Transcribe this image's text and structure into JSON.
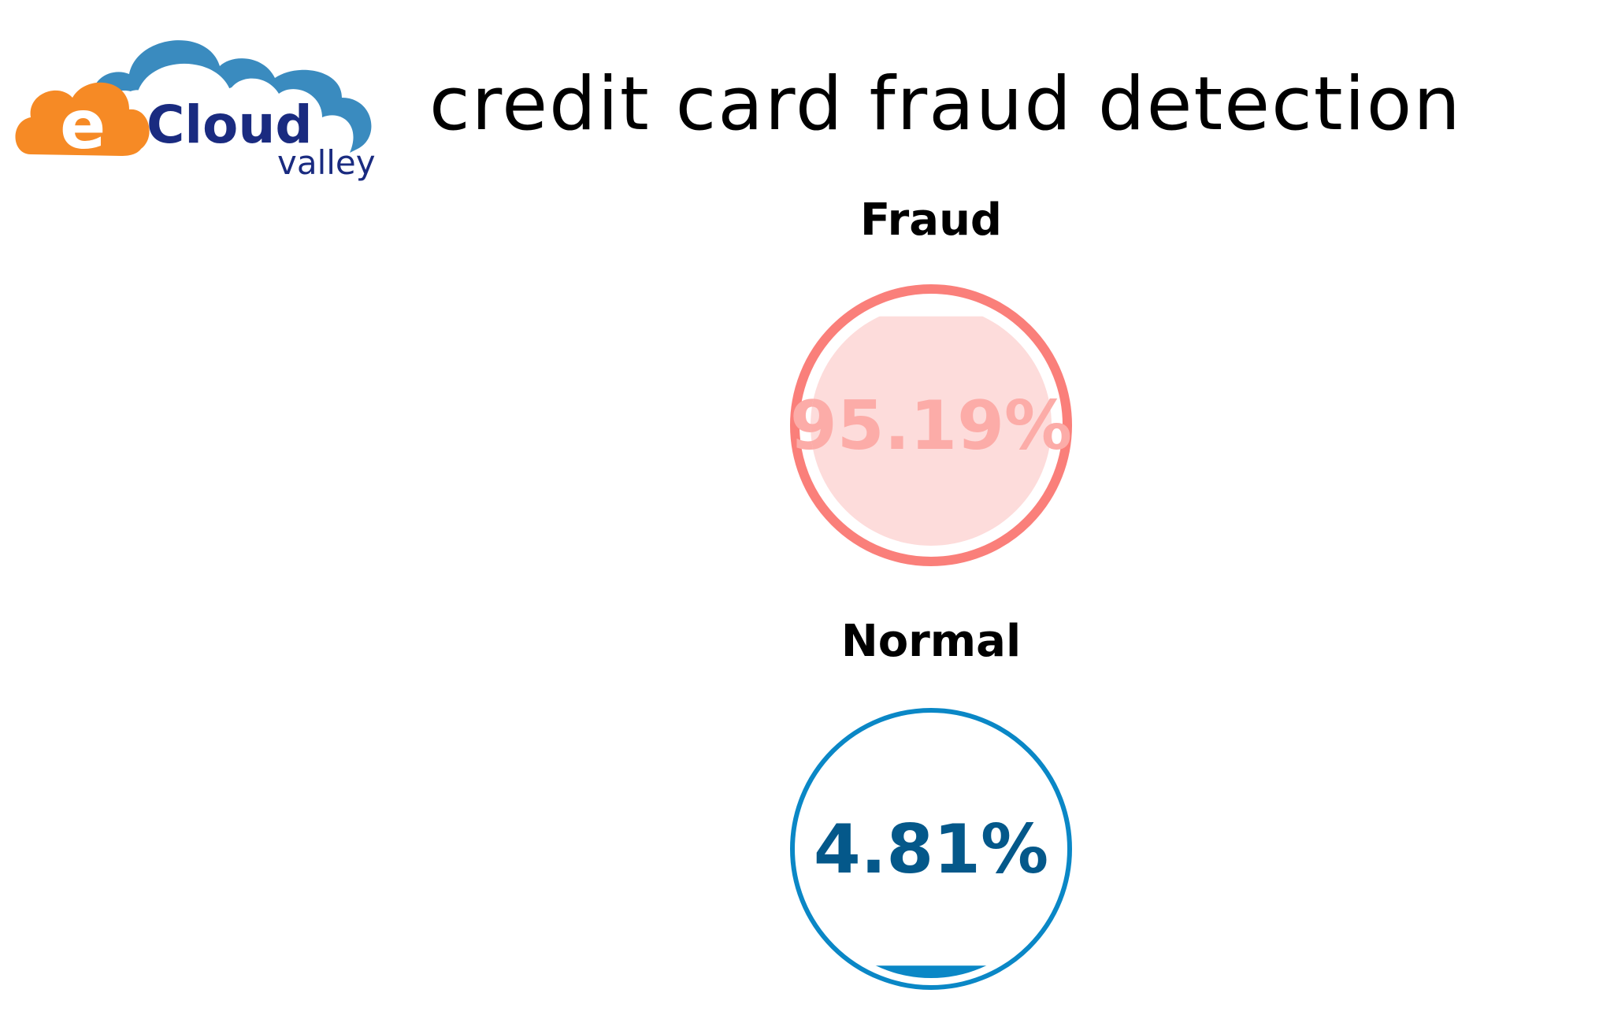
{
  "logo": {
    "brand_letter": "e",
    "brand_name": "Cloud",
    "brand_sub": "valley"
  },
  "header": {
    "title": "credit card fraud detection"
  },
  "gauges": [
    {
      "label": "Fraud",
      "value_text": "95.19%",
      "value": 95.19,
      "ring_color": "#fa7f7a",
      "fill_color": "#fddcdb",
      "text_color": "#fcaca8"
    },
    {
      "label": "Normal",
      "value_text": "4.81%",
      "value": 4.81,
      "ring_color": "#0a87c6",
      "fill_color": "#0a87c6",
      "text_color": "#04588a"
    }
  ],
  "colors": {
    "logo_orange": "#f68a25",
    "logo_blue_light": "#3a8bbf",
    "logo_navy": "#1a2b80"
  }
}
